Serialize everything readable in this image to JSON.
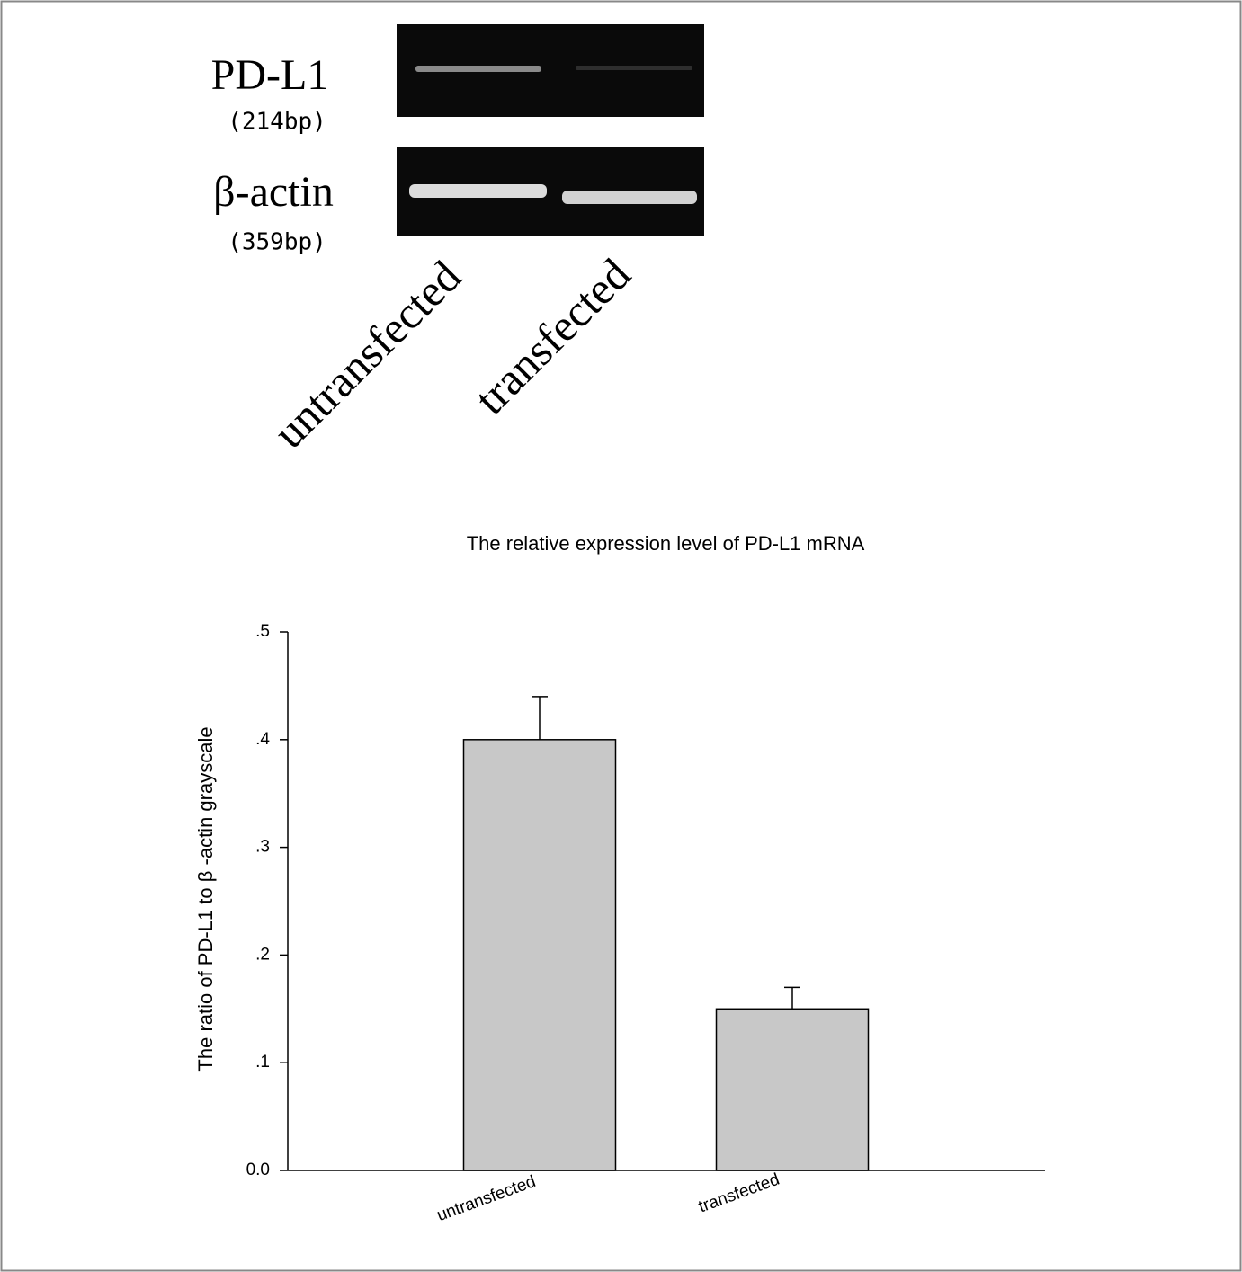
{
  "gel": {
    "rows": [
      {
        "label": "PD-L1",
        "size": "(214bp)"
      },
      {
        "label": "β-actin",
        "size": "(359bp)"
      }
    ],
    "lanes": [
      "untransfected",
      "transfected"
    ]
  },
  "chart_data": {
    "type": "bar",
    "title": "The relative expression level of PD-L1 mRNA",
    "y_label": "The ratio of PD-L1 to β -actin grayscale",
    "categories": [
      "untransfected",
      "transfected"
    ],
    "values": [
      0.4,
      0.15
    ],
    "errors": [
      0.04,
      0.02
    ],
    "color": "#c8c8c8",
    "ylim": [
      0,
      0.5
    ],
    "yticks": [
      {
        "value": 0,
        "label": "0.0"
      },
      {
        "value": 0.1,
        "label": ".1"
      },
      {
        "value": 0.2,
        "label": ".2"
      },
      {
        "value": 0.3,
        "label": ".3"
      },
      {
        "value": 0.4,
        "label": ".4"
      },
      {
        "value": 0.5,
        "label": ".5"
      }
    ],
    "grid": false
  }
}
